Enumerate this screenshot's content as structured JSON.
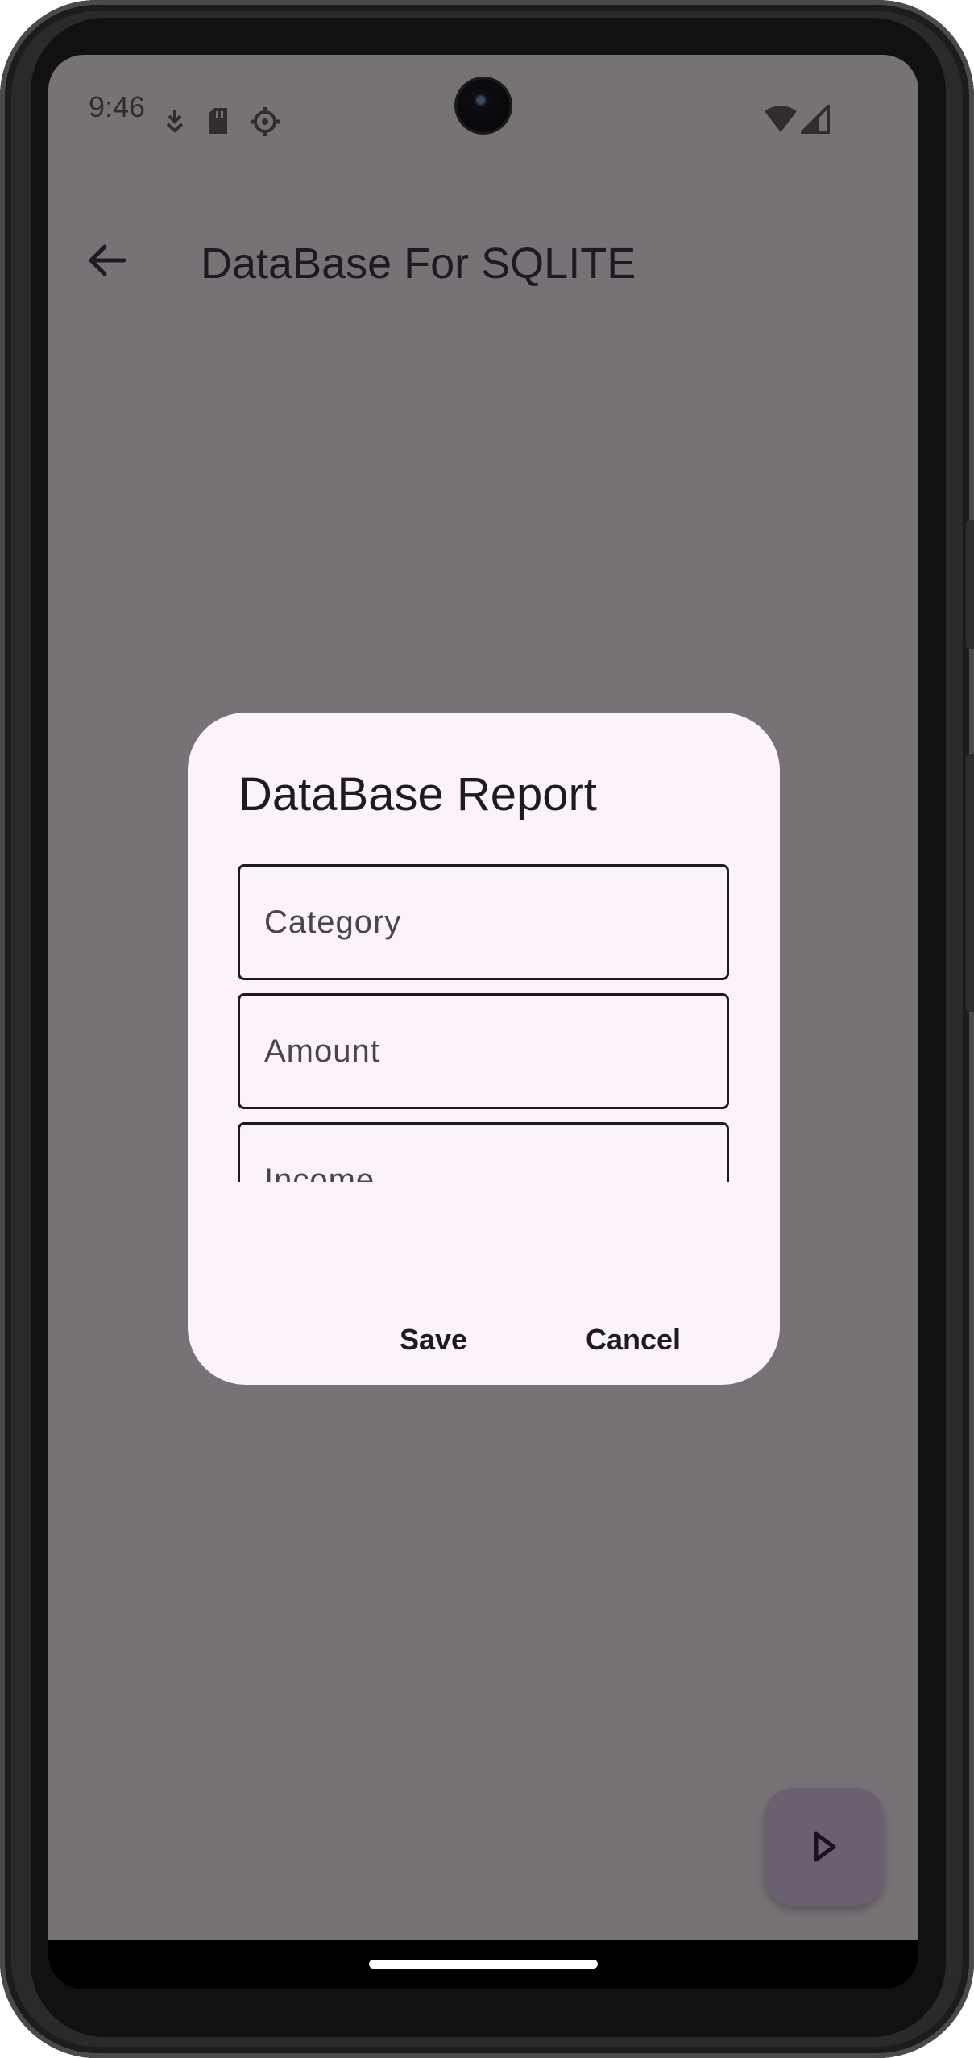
{
  "status_bar": {
    "time": "9:46",
    "left_icons": [
      "download-icon",
      "sd-card-icon",
      "settings-gear-icon"
    ],
    "right_icons": [
      "wifi-icon",
      "cell-signal-icon"
    ]
  },
  "app_bar": {
    "title": "DataBase For SQLITE",
    "back_icon": "arrow-back-icon"
  },
  "dialog": {
    "title": "DataBase Report",
    "fields": {
      "category": {
        "placeholder": "Category",
        "value": ""
      },
      "amount": {
        "placeholder": "Amount",
        "value": ""
      },
      "income": {
        "placeholder": "Income",
        "value": ""
      }
    },
    "save_label": "Save",
    "cancel_label": "Cancel"
  },
  "fab": {
    "icon": "play-arrow-icon"
  },
  "colors": {
    "scrim_background": "#777276",
    "dialog_surface": "#fbf2fb",
    "fab_container": "#6a6070",
    "on_surface": "#1d1b20"
  }
}
